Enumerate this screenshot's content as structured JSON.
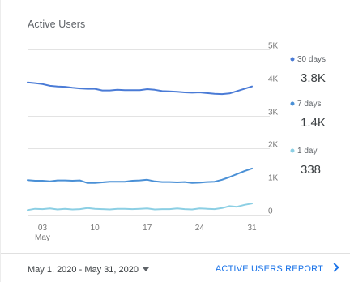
{
  "card": {
    "title": "Active Users"
  },
  "footer": {
    "date_range": "May 1, 2020 - May 31, 2020",
    "report_link": "ACTIVE USERS REPORT"
  },
  "colors": {
    "series_30": "#4a7bd6",
    "series_7": "#4a90d6",
    "series_1": "#8ccfe4",
    "grid": "#e3e3e3",
    "link": "#1a73e8"
  },
  "chart_data": {
    "type": "line",
    "title": "Active Users",
    "xlabel": "",
    "ylabel": "",
    "x": [
      1,
      2,
      3,
      4,
      5,
      6,
      7,
      8,
      9,
      10,
      11,
      12,
      13,
      14,
      15,
      16,
      17,
      18,
      19,
      20,
      21,
      22,
      23,
      24,
      25,
      26,
      27,
      28,
      29,
      30,
      31
    ],
    "x_ticks": [
      {
        "value": 3,
        "label": "03",
        "sublabel": "May"
      },
      {
        "value": 10,
        "label": "10"
      },
      {
        "value": 17,
        "label": "17"
      },
      {
        "value": 24,
        "label": "24"
      },
      {
        "value": 31,
        "label": "31"
      }
    ],
    "y_ticks": [
      {
        "value": 0,
        "label": "0"
      },
      {
        "value": 1000,
        "label": "1K"
      },
      {
        "value": 2000,
        "label": "2K"
      },
      {
        "value": 3000,
        "label": "3K"
      },
      {
        "value": 4000,
        "label": "4K"
      },
      {
        "value": 5000,
        "label": "5K"
      }
    ],
    "ylim": [
      0,
      5000
    ],
    "grid": true,
    "legend_position": "right",
    "series": [
      {
        "name": "30 days",
        "display_value": "3.8K",
        "color": "#4a7bd6",
        "values": [
          4000,
          3980,
          3950,
          3900,
          3880,
          3870,
          3840,
          3820,
          3810,
          3810,
          3760,
          3760,
          3780,
          3770,
          3770,
          3770,
          3800,
          3780,
          3740,
          3730,
          3720,
          3700,
          3690,
          3700,
          3680,
          3660,
          3650,
          3670,
          3740,
          3810,
          3880
        ]
      },
      {
        "name": "7 days",
        "display_value": "1.4K",
        "color": "#4a90d6",
        "values": [
          1050,
          1030,
          1030,
          1010,
          1040,
          1040,
          1030,
          1040,
          960,
          960,
          980,
          1000,
          1000,
          1000,
          1030,
          1040,
          1060,
          1010,
          990,
          990,
          980,
          990,
          960,
          970,
          990,
          1000,
          1060,
          1140,
          1230,
          1320,
          1400
        ]
      },
      {
        "name": "1 day",
        "display_value": "338",
        "color": "#8ccfe4",
        "values": [
          140,
          180,
          170,
          190,
          160,
          180,
          160,
          170,
          200,
          180,
          170,
          160,
          180,
          180,
          170,
          180,
          190,
          160,
          170,
          170,
          190,
          170,
          160,
          190,
          180,
          170,
          200,
          260,
          240,
          300,
          338
        ]
      }
    ]
  }
}
